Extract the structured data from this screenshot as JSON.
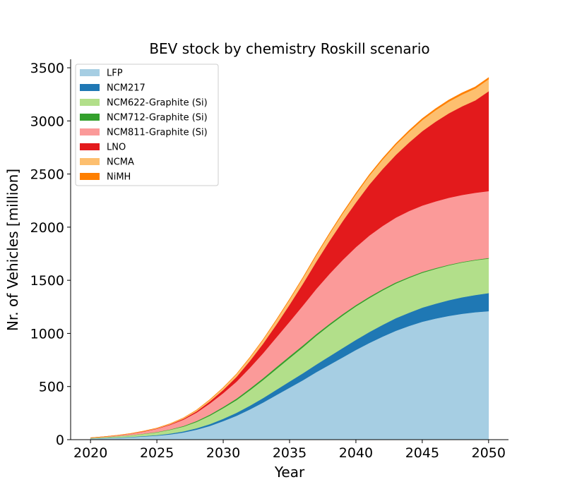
{
  "chart_data": {
    "type": "area",
    "stacked": true,
    "title": "BEV stock by chemistry Roskill scenario",
    "xlabel": "Year",
    "ylabel": "Nr. of Vehicles [million]",
    "xlim": [
      2018.5,
      2051.5
    ],
    "ylim": [
      0,
      3580
    ],
    "xticks": [
      2020,
      2025,
      2030,
      2035,
      2040,
      2045,
      2050
    ],
    "yticks": [
      0,
      500,
      1000,
      1500,
      2000,
      2500,
      3000,
      3500
    ],
    "legend_position": "upper-left",
    "grid": false,
    "x": [
      2020,
      2021,
      2022,
      2023,
      2024,
      2025,
      2026,
      2027,
      2028,
      2029,
      2030,
      2031,
      2032,
      2033,
      2034,
      2035,
      2036,
      2037,
      2038,
      2039,
      2040,
      2041,
      2042,
      2043,
      2044,
      2045,
      2046,
      2047,
      2048,
      2049,
      2050
    ],
    "series": [
      {
        "name": "LFP",
        "color": "#a6cee3",
        "values": [
          10,
          14,
          18,
          23,
          30,
          38,
          50,
          68,
          95,
          130,
          175,
          225,
          285,
          350,
          420,
          490,
          560,
          635,
          705,
          775,
          845,
          910,
          970,
          1025,
          1070,
          1110,
          1140,
          1165,
          1185,
          1200,
          1210
        ]
      },
      {
        "name": "NCM217",
        "color": "#1f78b4",
        "values": [
          1,
          1,
          2,
          3,
          4,
          5,
          8,
          10,
          13,
          17,
          22,
          28,
          35,
          42,
          50,
          58,
          65,
          72,
          80,
          88,
          95,
          103,
          110,
          118,
          125,
          133,
          140,
          148,
          155,
          162,
          170
        ]
      },
      {
        "name": "NCM622-Graphite (Si)",
        "color": "#b2df8a",
        "values": [
          5,
          8,
          12,
          16,
          20,
          26,
          35,
          45,
          60,
          80,
          100,
          120,
          145,
          170,
          195,
          220,
          245,
          270,
          290,
          305,
          315,
          320,
          325,
          327,
          328,
          328,
          328,
          328,
          328,
          327,
          325
        ]
      },
      {
        "name": "NCM712-Graphite (Si)",
        "color": "#33a02c",
        "values": [
          0,
          1,
          1,
          1,
          2,
          3,
          4,
          6,
          8,
          10,
          12,
          14,
          16,
          17,
          18,
          18,
          17,
          16,
          15,
          14,
          13,
          12,
          11,
          10,
          9,
          8,
          7,
          6,
          5,
          5,
          5
        ]
      },
      {
        "name": "NCM811-Graphite (Si)",
        "color": "#fb9a99",
        "values": [
          2,
          4,
          7,
          12,
          20,
          30,
          43,
          60,
          80,
          105,
          130,
          160,
          195,
          235,
          280,
          325,
          375,
          425,
          470,
          510,
          545,
          575,
          595,
          610,
          620,
          625,
          628,
          630,
          630,
          630,
          630
        ]
      },
      {
        "name": "LNO",
        "color": "#e31a1c",
        "values": [
          0,
          0,
          0,
          1,
          2,
          3,
          5,
          8,
          12,
          20,
          30,
          45,
          65,
          90,
          120,
          160,
          205,
          255,
          310,
          365,
          420,
          480,
          535,
          590,
          645,
          700,
          750,
          795,
          835,
          870,
          940
        ]
      },
      {
        "name": "NCMA",
        "color": "#fdbf6f",
        "values": [
          0,
          0,
          1,
          2,
          3,
          4,
          6,
          8,
          12,
          15,
          20,
          25,
          30,
          36,
          42,
          48,
          54,
          60,
          66,
          72,
          78,
          84,
          90,
          95,
          100,
          105,
          108,
          110,
          111,
          112,
          113
        ]
      },
      {
        "name": "NiMH",
        "color": "#ff7f00",
        "values": [
          0,
          0,
          0,
          0,
          0,
          0,
          0,
          0,
          0,
          1,
          1,
          1,
          2,
          2,
          3,
          3,
          4,
          5,
          6,
          7,
          8,
          9,
          10,
          11,
          12,
          13,
          14,
          15,
          15,
          15,
          15
        ]
      }
    ]
  }
}
